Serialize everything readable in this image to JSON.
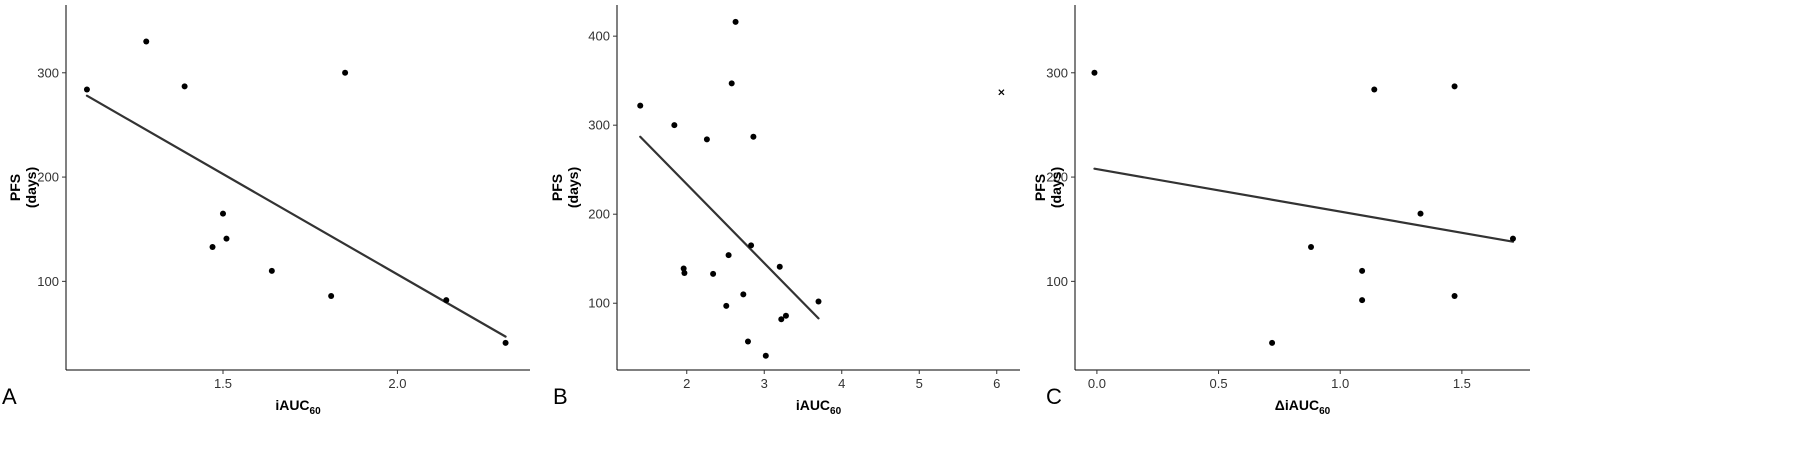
{
  "chart_data": [
    {
      "type": "scatter",
      "panel_label": "A",
      "xlabel": "iAUC",
      "xlabel_sub": "60",
      "ylabel_line1": "PFS",
      "ylabel_line2": "(days)",
      "xlim": [
        1.05,
        2.38
      ],
      "ylim": [
        15,
        365
      ],
      "xticks": [
        1.5,
        2.0
      ],
      "xtick_labels": [
        "1.5",
        "2.0"
      ],
      "yticks": [
        100,
        200,
        300
      ],
      "ytick_labels": [
        "100",
        "200",
        "300"
      ],
      "points": [
        {
          "x": 1.11,
          "y": 284
        },
        {
          "x": 1.28,
          "y": 330
        },
        {
          "x": 1.39,
          "y": 287
        },
        {
          "x": 1.47,
          "y": 133
        },
        {
          "x": 1.5,
          "y": 165
        },
        {
          "x": 1.51,
          "y": 141
        },
        {
          "x": 1.64,
          "y": 110
        },
        {
          "x": 1.81,
          "y": 86
        },
        {
          "x": 1.85,
          "y": 300
        },
        {
          "x": 2.14,
          "y": 82
        },
        {
          "x": 2.31,
          "y": 41
        }
      ],
      "outliers": [],
      "fit_line": {
        "x": [
          1.11,
          2.31
        ],
        "y": [
          278,
          47
        ]
      }
    },
    {
      "type": "scatter",
      "panel_label": "B",
      "xlabel": "iAUC",
      "xlabel_sub": "60",
      "ylabel_line1": "PFS",
      "ylabel_line2": "(days)",
      "xlim": [
        1.1,
        6.3
      ],
      "ylim": [
        25,
        435
      ],
      "xticks": [
        2,
        3,
        4,
        5,
        6
      ],
      "xtick_labels": [
        "2",
        "3",
        "4",
        "5",
        "6"
      ],
      "yticks": [
        100,
        200,
        300,
        400
      ],
      "ytick_labels": [
        "100",
        "200",
        "300",
        "400"
      ],
      "points": [
        {
          "x": 1.4,
          "y": 322
        },
        {
          "x": 1.84,
          "y": 300
        },
        {
          "x": 1.96,
          "y": 139
        },
        {
          "x": 1.97,
          "y": 134
        },
        {
          "x": 2.26,
          "y": 284
        },
        {
          "x": 2.34,
          "y": 133
        },
        {
          "x": 2.51,
          "y": 97
        },
        {
          "x": 2.54,
          "y": 154
        },
        {
          "x": 2.58,
          "y": 347
        },
        {
          "x": 2.63,
          "y": 416
        },
        {
          "x": 2.73,
          "y": 110
        },
        {
          "x": 2.79,
          "y": 57
        },
        {
          "x": 2.83,
          "y": 165
        },
        {
          "x": 2.86,
          "y": 287
        },
        {
          "x": 3.02,
          "y": 41
        },
        {
          "x": 3.2,
          "y": 141
        },
        {
          "x": 3.22,
          "y": 82
        },
        {
          "x": 3.28,
          "y": 86
        },
        {
          "x": 3.7,
          "y": 102
        }
      ],
      "outliers": [
        {
          "x": 6.06,
          "y": 337
        }
      ],
      "fit_line": {
        "x": [
          1.4,
          3.7
        ],
        "y": [
          287,
          83
        ]
      }
    },
    {
      "type": "scatter",
      "panel_label": "C",
      "xlabel": "ΔiAUC",
      "xlabel_sub": "60",
      "ylabel_line1": "PFS",
      "ylabel_line2": "(days)",
      "xlim": [
        -0.09,
        1.78
      ],
      "ylim": [
        15,
        365
      ],
      "xticks": [
        0.0,
        0.5,
        1.0,
        1.5
      ],
      "xtick_labels": [
        "0.0",
        "0.5",
        "1.0",
        "1.5"
      ],
      "yticks": [
        100,
        200,
        300
      ],
      "ytick_labels": [
        "100",
        "200",
        "300"
      ],
      "points": [
        {
          "x": -0.01,
          "y": 300
        },
        {
          "x": 0.72,
          "y": 41
        },
        {
          "x": 0.88,
          "y": 133
        },
        {
          "x": 1.09,
          "y": 110
        },
        {
          "x": 1.09,
          "y": 82
        },
        {
          "x": 1.14,
          "y": 284
        },
        {
          "x": 1.33,
          "y": 165
        },
        {
          "x": 1.47,
          "y": 287
        },
        {
          "x": 1.47,
          "y": 86
        },
        {
          "x": 1.71,
          "y": 141
        }
      ],
      "outliers": [],
      "fit_line": {
        "x": [
          -0.01,
          1.71
        ],
        "y": [
          208,
          138
        ]
      }
    }
  ]
}
